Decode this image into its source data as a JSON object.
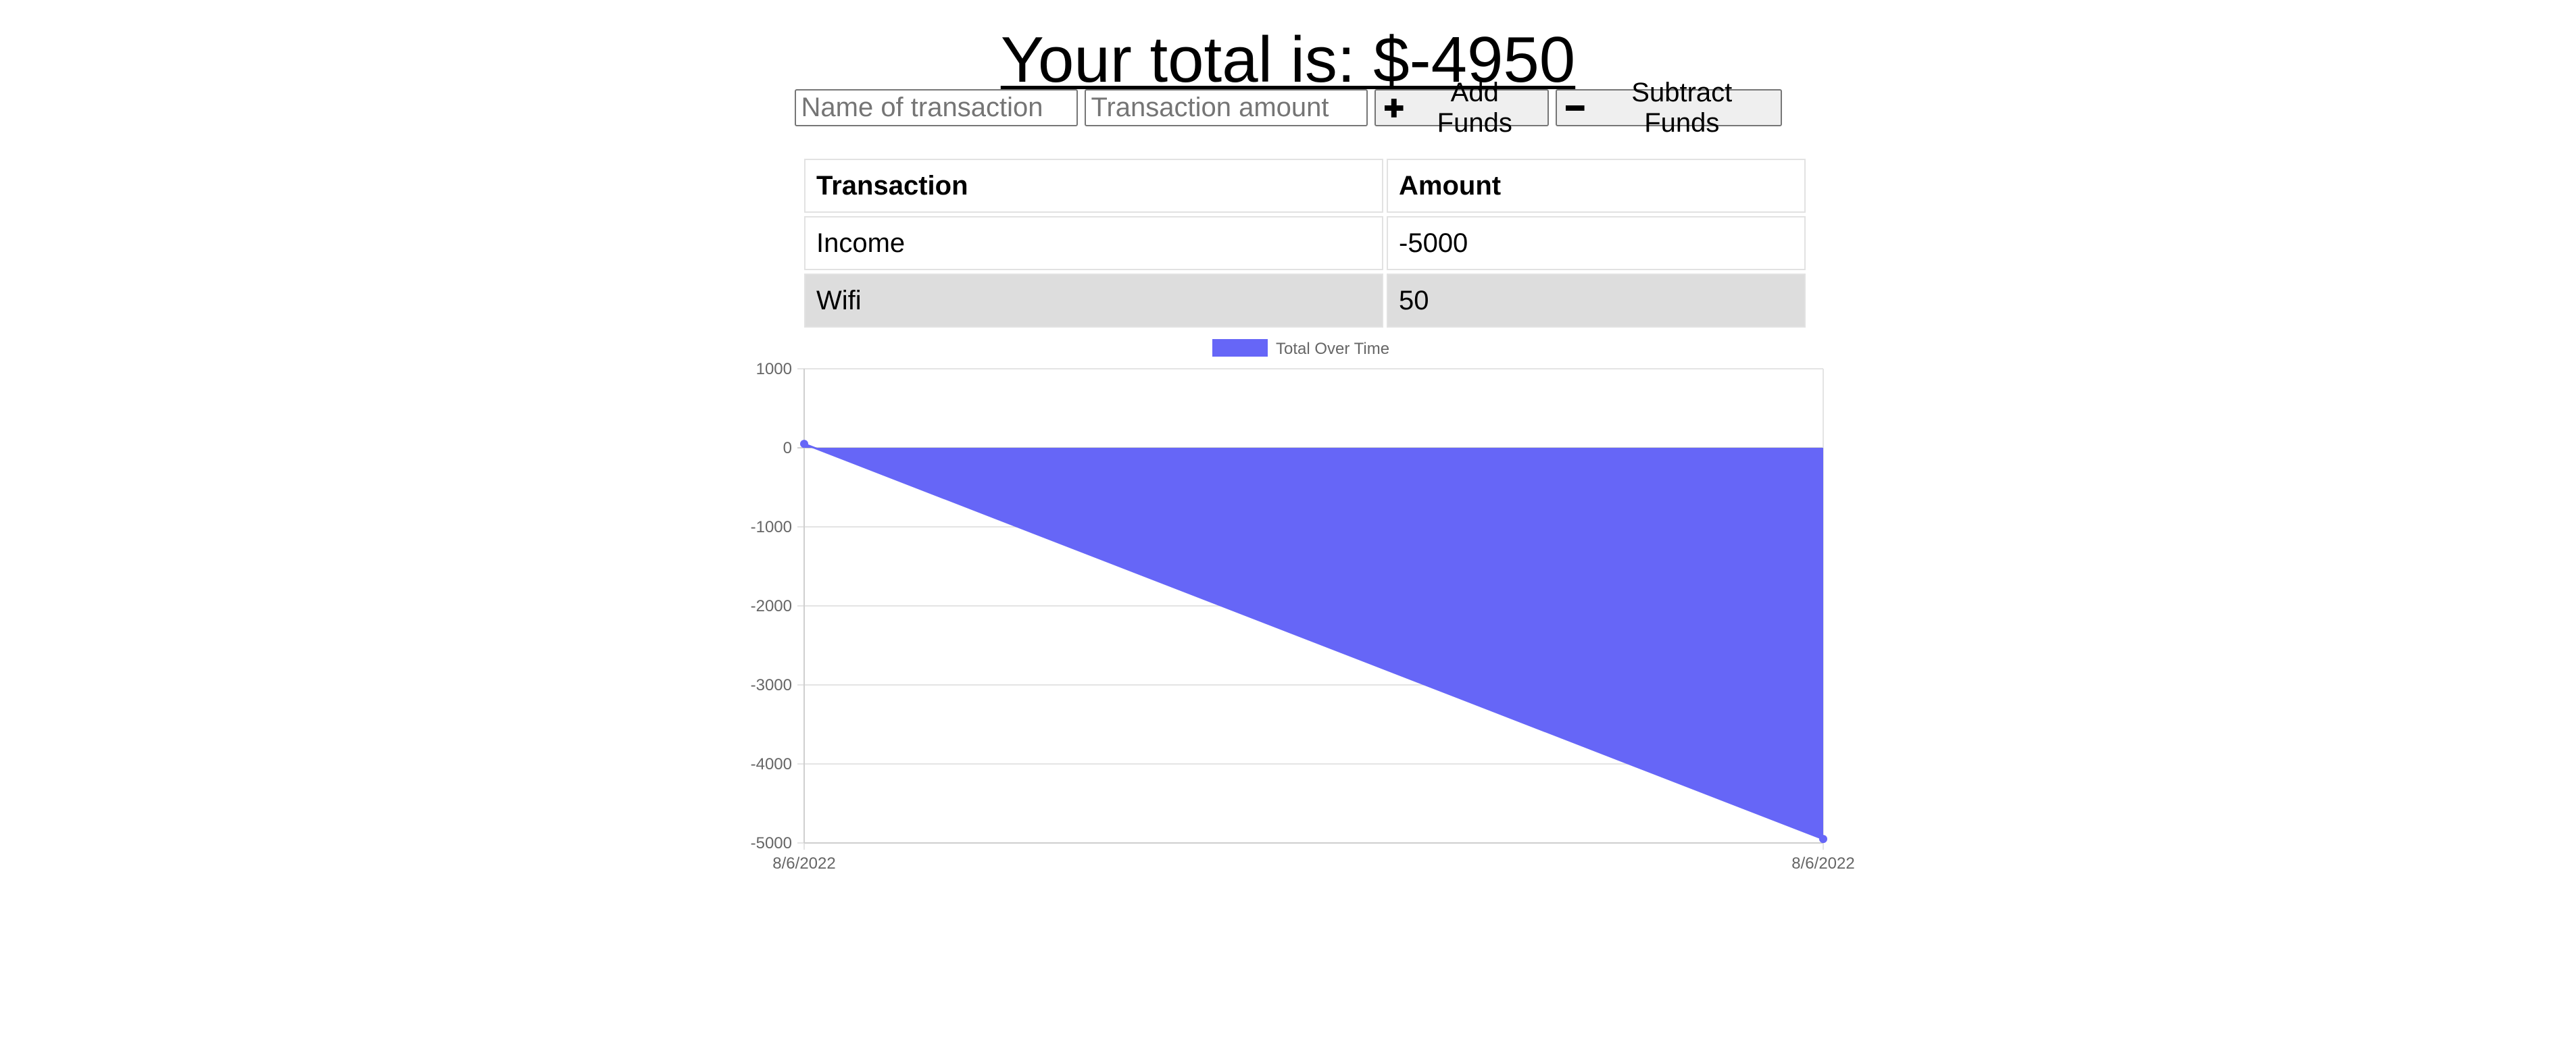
{
  "header": {
    "total_text": "Your total is: $-4950"
  },
  "form": {
    "name_placeholder": "Name of transaction",
    "amount_placeholder": "Transaction amount",
    "add_label": "Add Funds",
    "subtract_label": "Subtract Funds",
    "add_icon": "plus-icon",
    "subtract_icon": "minus-icon"
  },
  "table": {
    "headers": [
      "Transaction",
      "Amount"
    ],
    "rows": [
      {
        "name": "Income",
        "amount": "-5000"
      },
      {
        "name": "Wifi",
        "amount": "50"
      }
    ]
  },
  "chart_data": {
    "type": "area",
    "series": [
      {
        "name": "Total Over Time",
        "x": [
          "8/6/2022",
          "8/6/2022"
        ],
        "values": [
          50,
          -4950
        ]
      }
    ],
    "ylim": [
      -5000,
      1000
    ],
    "yticks": [
      1000,
      0,
      -1000,
      -2000,
      -3000,
      -4000,
      -5000
    ],
    "xticks": [
      "8/6/2022",
      "8/6/2022"
    ],
    "grid": true,
    "legend": "top-center",
    "fill_color": "#6666f7"
  }
}
